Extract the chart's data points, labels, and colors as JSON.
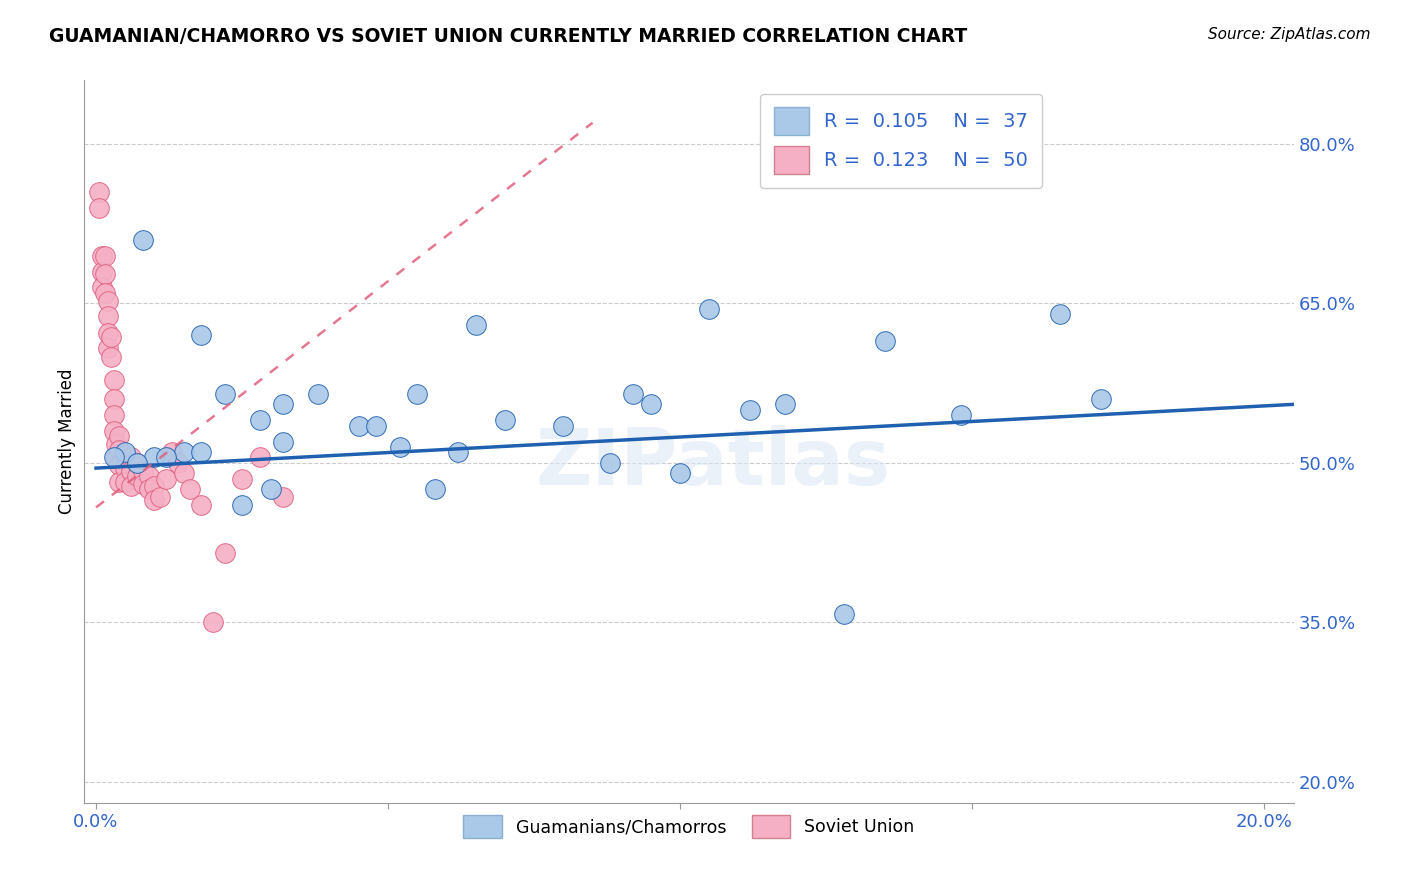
{
  "title": "GUAMANIAN/CHAMORRO VS SOVIET UNION CURRENTLY MARRIED CORRELATION CHART",
  "source": "Source: ZipAtlas.com",
  "ylabel": "Currently Married",
  "y_tick_labels": [
    "20.0%",
    "35.0%",
    "50.0%",
    "65.0%",
    "80.0%"
  ],
  "y_tick_values": [
    0.2,
    0.35,
    0.5,
    0.65,
    0.8
  ],
  "x_tick_values": [
    0.0,
    0.05,
    0.1,
    0.15,
    0.2
  ],
  "x_tick_labels": [
    "0.0%",
    "",
    "",
    "",
    "20.0%"
  ],
  "xlim": [
    -0.002,
    0.205
  ],
  "ylim": [
    0.18,
    0.86
  ],
  "legend_labels": [
    "Guamanians/Chamorros",
    "Soviet Union"
  ],
  "R_blue": 0.105,
  "N_blue": 37,
  "R_pink": 0.123,
  "N_pink": 50,
  "blue_color": "#aac8e8",
  "blue_line_color": "#2060b0",
  "pink_color": "#f5b0c5",
  "pink_line_color": "#e06080",
  "watermark": "ZIPatlas",
  "blue_scatter_x": [
    0.028,
    0.045,
    0.032,
    0.022,
    0.055,
    0.092,
    0.065,
    0.105,
    0.08,
    0.048,
    0.03,
    0.018,
    0.038,
    0.07,
    0.118,
    0.135,
    0.095,
    0.062,
    0.148,
    0.165,
    0.005,
    0.01,
    0.015,
    0.008,
    0.012,
    0.018,
    0.003,
    0.007,
    0.025,
    0.032,
    0.052,
    0.128,
    0.112,
    0.1,
    0.088,
    0.058,
    0.172
  ],
  "blue_scatter_y": [
    0.54,
    0.535,
    0.52,
    0.565,
    0.565,
    0.565,
    0.63,
    0.645,
    0.535,
    0.535,
    0.475,
    0.62,
    0.565,
    0.54,
    0.555,
    0.615,
    0.555,
    0.51,
    0.545,
    0.64,
    0.51,
    0.505,
    0.51,
    0.71,
    0.505,
    0.51,
    0.505,
    0.5,
    0.46,
    0.555,
    0.515,
    0.358,
    0.55,
    0.49,
    0.5,
    0.475,
    0.56
  ],
  "pink_scatter_x": [
    0.0005,
    0.0005,
    0.001,
    0.001,
    0.001,
    0.0015,
    0.0015,
    0.0015,
    0.002,
    0.002,
    0.002,
    0.002,
    0.0025,
    0.0025,
    0.003,
    0.003,
    0.003,
    0.003,
    0.0035,
    0.0035,
    0.004,
    0.004,
    0.004,
    0.004,
    0.005,
    0.005,
    0.005,
    0.006,
    0.006,
    0.006,
    0.007,
    0.007,
    0.008,
    0.008,
    0.009,
    0.009,
    0.01,
    0.01,
    0.011,
    0.012,
    0.013,
    0.014,
    0.015,
    0.016,
    0.018,
    0.02,
    0.022,
    0.025,
    0.028,
    0.032
  ],
  "pink_scatter_y": [
    0.755,
    0.74,
    0.695,
    0.68,
    0.665,
    0.695,
    0.678,
    0.66,
    0.652,
    0.638,
    0.622,
    0.608,
    0.618,
    0.6,
    0.578,
    0.56,
    0.545,
    0.53,
    0.518,
    0.505,
    0.525,
    0.512,
    0.498,
    0.482,
    0.507,
    0.495,
    0.482,
    0.505,
    0.492,
    0.478,
    0.5,
    0.488,
    0.492,
    0.48,
    0.488,
    0.475,
    0.478,
    0.465,
    0.468,
    0.485,
    0.51,
    0.5,
    0.49,
    0.475,
    0.46,
    0.35,
    0.415,
    0.485,
    0.505,
    0.468
  ],
  "blue_trend_x0": 0.0,
  "blue_trend_y0": 0.495,
  "blue_trend_x1": 0.205,
  "blue_trend_y1": 0.555,
  "pink_trend_x0": 0.0,
  "pink_trend_y0": 0.458,
  "pink_trend_x1": 0.085,
  "pink_trend_y1": 0.82
}
